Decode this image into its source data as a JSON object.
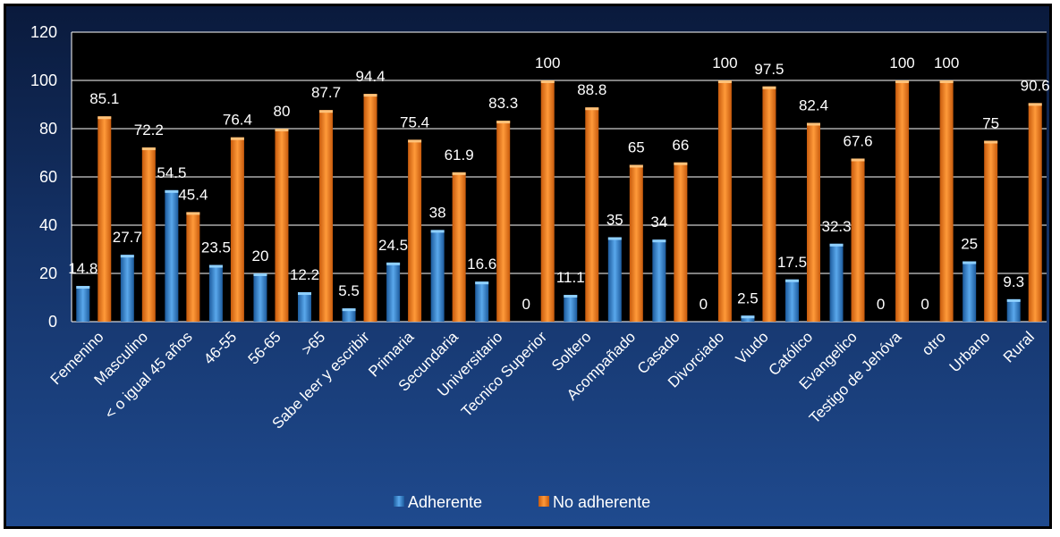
{
  "chart_data": {
    "type": "bar",
    "title": "",
    "xlabel": "",
    "ylabel": "",
    "ylim": [
      0,
      120
    ],
    "yticks": [
      0,
      20,
      40,
      60,
      80,
      100,
      120
    ],
    "grid": true,
    "legend_position": "bottom",
    "categories": [
      "Femenino",
      "Masculino",
      "< o igual 45 años",
      "46-55",
      "56-65",
      ">65",
      "Sabe leer y escribir",
      "Primaria",
      "Secundaria",
      "Universitario",
      "Tecnico Superior",
      "Soltero",
      "Acompañado",
      "Casado",
      "Divorciado",
      "Viudo",
      "Católico",
      "Evangelico",
      "Testigo de Jehóva",
      "otro",
      "Urbano",
      "Rural"
    ],
    "series": [
      {
        "name": "Adherente",
        "color": "#3d8fd6",
        "values": [
          14.8,
          27.7,
          54.5,
          23.5,
          20,
          12.2,
          5.5,
          24.5,
          38,
          16.6,
          0,
          11.1,
          35,
          34,
          0,
          2.5,
          17.5,
          32.3,
          0,
          0,
          25,
          9.3
        ]
      },
      {
        "name": "No adherente",
        "color": "#ee7a1e",
        "values": [
          85.1,
          72.2,
          45.4,
          76.4,
          80,
          87.7,
          94.4,
          75.4,
          61.9,
          83.3,
          100,
          88.8,
          65,
          66,
          100,
          97.5,
          82.4,
          67.6,
          100,
          100,
          75,
          90.6
        ]
      }
    ]
  }
}
